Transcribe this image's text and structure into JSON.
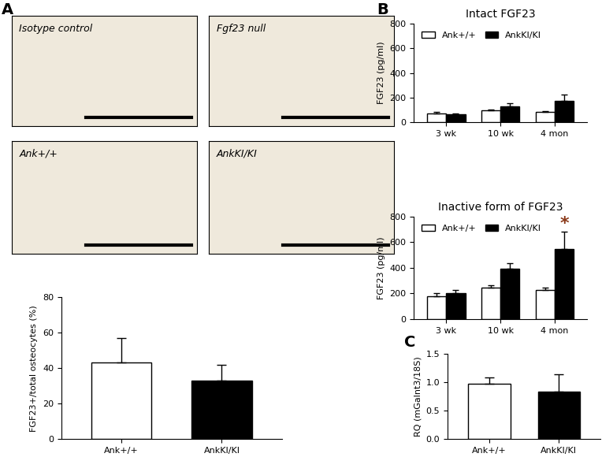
{
  "panel_labels": [
    "A",
    "B",
    "C"
  ],
  "images": [
    {
      "label": "Isotype control"
    },
    {
      "label": "Fgf23 null"
    },
    {
      "label": "Ank+/+"
    },
    {
      "label": "AnkKI/KI"
    }
  ],
  "chart_data": [
    {
      "type": "bar",
      "categories": [
        "Ank+/+",
        "AnkKI/KI"
      ],
      "values": [
        43,
        33
      ],
      "errors": [
        14,
        9
      ],
      "colors": [
        "#ffffff",
        "#000000"
      ],
      "y_label": "FGF23+/total osteocytes (%)",
      "ylim": [
        0,
        80
      ],
      "yticks": [
        0,
        20,
        40,
        60,
        80
      ]
    },
    {
      "type": "bar",
      "title": "Intact FGF23",
      "categories": [
        "3 wk",
        "10 wk",
        "4 mon"
      ],
      "series": [
        {
          "name": "Ank+/+",
          "color": "#ffffff",
          "values": [
            70,
            95,
            85
          ],
          "errors": [
            12,
            10,
            5
          ]
        },
        {
          "name": "AnkKI/KI",
          "color": "#000000",
          "values": [
            65,
            130,
            175
          ],
          "errors": [
            5,
            25,
            50
          ]
        }
      ],
      "y_label": "FGF23 (pg/ml)",
      "ylim": [
        0,
        800
      ],
      "yticks": [
        0,
        200,
        400,
        600,
        800
      ],
      "legend": "upper left"
    },
    {
      "type": "bar",
      "title": "Inactive form of FGF23",
      "categories": [
        "3 wk",
        "10 wk",
        "4 mon"
      ],
      "series": [
        {
          "name": "Ank+/+",
          "color": "#ffffff",
          "values": [
            180,
            245,
            230
          ],
          "errors": [
            20,
            20,
            15
          ]
        },
        {
          "name": "AnkKI/KI",
          "color": "#000000",
          "values": [
            205,
            395,
            550
          ],
          "errors": [
            20,
            40,
            135
          ]
        }
      ],
      "y_label": "FGF23 (pg/ml)",
      "ylim": [
        0,
        800
      ],
      "yticks": [
        0,
        200,
        400,
        600,
        800
      ],
      "legend": "upper left",
      "annotations": [
        {
          "text": "*",
          "category": "4 mon",
          "series": "AnkKI/KI",
          "color": "#8b3a1a"
        }
      ]
    },
    {
      "type": "bar",
      "categories": [
        "Ank+/+",
        "AnkKI/KI"
      ],
      "values": [
        0.98,
        0.84
      ],
      "errors": [
        0.1,
        0.3
      ],
      "colors": [
        "#ffffff",
        "#000000"
      ],
      "y_label": "RQ (mGalnt3/18S)",
      "ylim": [
        0,
        1.5
      ],
      "yticks": [
        {
          "value": 0,
          "label": "0.0"
        },
        0.5,
        {
          "value": 1,
          "label": "1.0"
        },
        1.5
      ]
    }
  ]
}
